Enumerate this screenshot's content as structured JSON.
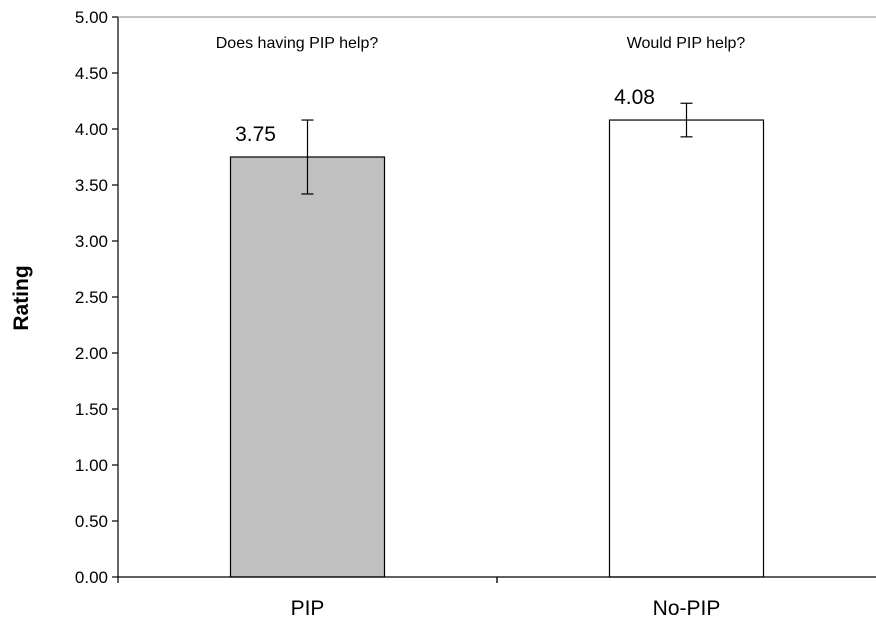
{
  "chart_data": {
    "type": "bar",
    "title": "",
    "xlabel": "",
    "ylabel": "Rating",
    "ylim": [
      0,
      5
    ],
    "ytick_step": 0.5,
    "ytick_labels": [
      "0.00",
      "0.50",
      "1.00",
      "1.50",
      "2.00",
      "2.50",
      "3.00",
      "3.50",
      "4.00",
      "4.50",
      "5.00"
    ],
    "grid": false,
    "legend": "none",
    "categories": [
      "PIP",
      "No-PIP"
    ],
    "values": [
      3.75,
      4.08
    ],
    "data_labels": [
      "3.75",
      "4.08"
    ],
    "error_bars": [
      {
        "low": 3.42,
        "high": 4.08
      },
      {
        "low": 3.93,
        "high": 4.23
      }
    ],
    "annotations": [
      "Does having PIP help?",
      "Would PIP help?"
    ],
    "bar_colors": [
      "#c0c0c0",
      "#ffffff"
    ],
    "edge_color": "#000000"
  }
}
